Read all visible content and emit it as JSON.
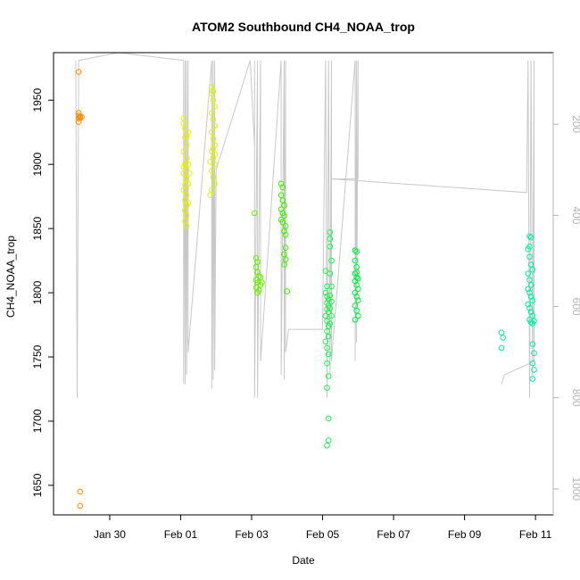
{
  "chart_data": {
    "type": "scatter",
    "title": "ATOM2 Southbound CH4_NOAA_trop",
    "xlabel": "Date",
    "ylabel": "CH4_NOAA_trop",
    "x_axis": {
      "type": "date",
      "range": [
        "2017-01-28T10:00",
        "2017-02-11T12:00"
      ],
      "ticks": [
        "Jan 30",
        "Feb 01",
        "Feb 03",
        "Feb 05",
        "Feb 07",
        "Feb 09",
        "Feb 11"
      ],
      "tick_dates": [
        "2017-01-30",
        "2017-02-01",
        "2017-02-03",
        "2017-02-05",
        "2017-02-07",
        "2017-02-09",
        "2017-02-11"
      ]
    },
    "y_axis": {
      "range": [
        1627,
        1987
      ],
      "ticks": [
        1650,
        1700,
        1750,
        1800,
        1850,
        1900,
        1950
      ]
    },
    "y2_axis": {
      "range": [
        1057,
        43
      ],
      "reversed": true,
      "ticks": [
        200,
        400,
        600,
        800,
        1000
      ],
      "color": "#b3b3b3"
    },
    "grid": false,
    "legend": "none",
    "colors": {
      "background": "#ffffff",
      "axis": "#000000",
      "flight_track": "#c8c8c8",
      "secondary_axis": "#b3b3b3"
    },
    "series": [
      {
        "color": "#FF8C00",
        "points": [
          [
            "2017-01-29T03:00",
            1972
          ],
          [
            "2017-01-29T03:00",
            1940
          ],
          [
            "2017-01-29T03:00",
            1938
          ],
          [
            "2017-01-29T04:00",
            1937
          ],
          [
            "2017-01-29T03:00",
            1936
          ],
          [
            "2017-01-29T04:00",
            1937
          ],
          [
            "2017-01-29T03:00",
            1933
          ],
          [
            "2017-01-29T05:00",
            1937
          ],
          [
            "2017-01-29T04:00",
            1936
          ],
          [
            "2017-01-29T04:00",
            1645
          ],
          [
            "2017-01-29T04:00",
            1634
          ]
        ]
      },
      {
        "color": "#E6F200",
        "points": [
          [
            "2017-02-01T02:00",
            1932
          ],
          [
            "2017-02-01T03:00",
            1928
          ],
          [
            "2017-02-01T03:00",
            1921
          ],
          [
            "2017-02-01T04:00",
            1915
          ],
          [
            "2017-02-01T02:00",
            1910
          ],
          [
            "2017-02-01T04:00",
            1905
          ],
          [
            "2017-02-01T03:00",
            1900
          ],
          [
            "2017-02-01T04:00",
            1896
          ],
          [
            "2017-02-01T02:00",
            1893
          ],
          [
            "2017-02-01T04:00",
            1889
          ],
          [
            "2017-02-01T03:00",
            1884
          ],
          [
            "2017-02-01T02:00",
            1880
          ],
          [
            "2017-02-01T04:00",
            1876
          ],
          [
            "2017-02-01T03:00",
            1872
          ],
          [
            "2017-02-01T04:00",
            1868
          ],
          [
            "2017-02-01T03:00",
            1864
          ],
          [
            "2017-02-01T04:00",
            1860
          ],
          [
            "2017-02-01T03:00",
            1856
          ],
          [
            "2017-02-01T04:00",
            1852
          ],
          [
            "2017-02-01T05:00",
            1900
          ],
          [
            "2017-02-01T05:00",
            1885
          ],
          [
            "2017-02-01T05:00",
            1870
          ],
          [
            "2017-02-01T02:00",
            1936
          ],
          [
            "2017-02-01T04:00",
            1922
          ],
          [
            "2017-02-01T02:00",
            1898
          ],
          [
            "2017-02-01T06:00",
            1893
          ],
          [
            "2017-02-01T05:00",
            1925
          ]
        ]
      },
      {
        "color": "#D8F500",
        "points": [
          [
            "2017-02-01T21:00",
            1960
          ],
          [
            "2017-02-01T22:00",
            1957
          ],
          [
            "2017-02-01T21:00",
            1955
          ],
          [
            "2017-02-01T22:00",
            1950
          ],
          [
            "2017-02-01T23:00",
            1945
          ],
          [
            "2017-02-01T21:00",
            1940
          ],
          [
            "2017-02-01T22:00",
            1935
          ],
          [
            "2017-02-01T23:00",
            1930
          ],
          [
            "2017-02-01T21:00",
            1925
          ],
          [
            "2017-02-01T22:00",
            1920
          ],
          [
            "2017-02-01T23:00",
            1915
          ],
          [
            "2017-02-01T21:00",
            1910
          ],
          [
            "2017-02-01T22:00",
            1905
          ],
          [
            "2017-02-01T23:00",
            1900
          ],
          [
            "2017-02-01T21:00",
            1895
          ],
          [
            "2017-02-01T22:00",
            1890
          ],
          [
            "2017-02-01T23:00",
            1885
          ],
          [
            "2017-02-01T21:00",
            1880
          ],
          [
            "2017-02-01T20:00",
            1876
          ],
          [
            "2017-02-01T23:00",
            1908
          ],
          [
            "2017-02-01T20:00",
            1902
          ],
          [
            "2017-02-01T22:00",
            1912
          ]
        ]
      },
      {
        "color": "#66F000",
        "points": [
          [
            "2017-02-03T02:00",
            1862
          ],
          [
            "2017-02-03T03:00",
            1827
          ],
          [
            "2017-02-03T04:00",
            1824
          ],
          [
            "2017-02-03T03:00",
            1820
          ],
          [
            "2017-02-03T04:00",
            1816
          ],
          [
            "2017-02-03T05:00",
            1813
          ],
          [
            "2017-02-03T03:00",
            1810
          ],
          [
            "2017-02-03T04:00",
            1808
          ],
          [
            "2017-02-03T06:00",
            1806
          ],
          [
            "2017-02-03T03:00",
            1804
          ],
          [
            "2017-02-03T05:00",
            1802
          ],
          [
            "2017-02-03T04:00",
            1800
          ],
          [
            "2017-02-03T06:00",
            1812
          ],
          [
            "2017-02-03T07:00",
            1808
          ]
        ]
      },
      {
        "color": "#40F000",
        "points": [
          [
            "2017-02-03T20:00",
            1885
          ],
          [
            "2017-02-03T21:00",
            1882
          ],
          [
            "2017-02-03T20:00",
            1876
          ],
          [
            "2017-02-03T21:00",
            1872
          ],
          [
            "2017-02-03T22:00",
            1868
          ],
          [
            "2017-02-03T20:00",
            1865
          ],
          [
            "2017-02-03T21:00",
            1862
          ],
          [
            "2017-02-03T22:00",
            1860
          ],
          [
            "2017-02-03T20:00",
            1857
          ],
          [
            "2017-02-03T21:00",
            1855
          ],
          [
            "2017-02-03T23:00",
            1852
          ],
          [
            "2017-02-03T22:00",
            1848
          ],
          [
            "2017-02-03T23:00",
            1835
          ],
          [
            "2017-02-03T22:00",
            1830
          ],
          [
            "2017-02-03T23:00",
            1826
          ],
          [
            "2017-02-03T22:00",
            1822
          ],
          [
            "2017-02-04T00:00",
            1801
          ],
          [
            "2017-02-03T23:00",
            1845
          ]
        ]
      },
      {
        "color": "#20F050",
        "points": [
          [
            "2017-02-05T02:00",
            1817
          ],
          [
            "2017-02-05T03:00",
            1805
          ],
          [
            "2017-02-05T02:00",
            1800
          ],
          [
            "2017-02-05T03:00",
            1797
          ],
          [
            "2017-02-05T04:00",
            1795
          ],
          [
            "2017-02-05T03:00",
            1792
          ],
          [
            "2017-02-05T04:00",
            1790
          ],
          [
            "2017-02-05T03:00",
            1787
          ],
          [
            "2017-02-05T04:00",
            1785
          ],
          [
            "2017-02-05T02:00",
            1782
          ],
          [
            "2017-02-05T03:00",
            1778
          ],
          [
            "2017-02-05T04:00",
            1774
          ],
          [
            "2017-02-05T03:00",
            1770
          ],
          [
            "2017-02-05T04:00",
            1766
          ],
          [
            "2017-02-05T02:00",
            1762
          ],
          [
            "2017-02-05T03:00",
            1757
          ],
          [
            "2017-02-05T04:00",
            1752
          ],
          [
            "2017-02-05T03:00",
            1745
          ],
          [
            "2017-02-05T04:00",
            1735
          ],
          [
            "2017-02-05T03:00",
            1726
          ],
          [
            "2017-02-05T04:00",
            1702
          ],
          [
            "2017-02-05T04:00",
            1685
          ],
          [
            "2017-02-05T03:00",
            1681
          ],
          [
            "2017-02-05T05:00",
            1847
          ],
          [
            "2017-02-05T05:00",
            1842
          ],
          [
            "2017-02-05T05:00",
            1836
          ],
          [
            "2017-02-05T06:00",
            1825
          ],
          [
            "2017-02-05T05:00",
            1815
          ],
          [
            "2017-02-05T06:00",
            1805
          ],
          [
            "2017-02-05T05:00",
            1798
          ],
          [
            "2017-02-05T06:00",
            1793
          ],
          [
            "2017-02-05T05:00",
            1788
          ],
          [
            "2017-02-05T06:00",
            1782
          ],
          [
            "2017-02-05T05:00",
            1776
          ]
        ]
      },
      {
        "color": "#00F040",
        "points": [
          [
            "2017-02-05T22:00",
            1833
          ],
          [
            "2017-02-05T23:00",
            1832
          ],
          [
            "2017-02-05T22:00",
            1825
          ],
          [
            "2017-02-05T23:00",
            1820
          ],
          [
            "2017-02-05T22:00",
            1815
          ],
          [
            "2017-02-05T23:00",
            1812
          ],
          [
            "2017-02-05T22:00",
            1809
          ],
          [
            "2017-02-05T23:00",
            1806
          ],
          [
            "2017-02-06T00:00",
            1803
          ],
          [
            "2017-02-05T22:00",
            1800
          ],
          [
            "2017-02-05T23:00",
            1797
          ],
          [
            "2017-02-06T00:00",
            1794
          ],
          [
            "2017-02-05T22:00",
            1790
          ],
          [
            "2017-02-05T23:00",
            1786
          ],
          [
            "2017-02-06T00:00",
            1782
          ],
          [
            "2017-02-05T22:00",
            1779
          ],
          [
            "2017-02-05T23:00",
            1816
          ],
          [
            "2017-02-06T00:00",
            1811
          ]
        ]
      },
      {
        "color": "#00F0A0",
        "points": [
          [
            "2017-02-10T01:00",
            1769
          ],
          [
            "2017-02-10T02:00",
            1765
          ],
          [
            "2017-02-10T01:00",
            1757
          ],
          [
            "2017-02-10T20:00",
            1844
          ],
          [
            "2017-02-10T21:00",
            1843
          ],
          [
            "2017-02-10T20:00",
            1836
          ],
          [
            "2017-02-10T19:00",
            1834
          ],
          [
            "2017-02-10T20:00",
            1828
          ],
          [
            "2017-02-10T21:00",
            1822
          ],
          [
            "2017-02-10T22:00",
            1818
          ],
          [
            "2017-02-10T19:00",
            1815
          ],
          [
            "2017-02-10T20:00",
            1810
          ],
          [
            "2017-02-10T21:00",
            1806
          ],
          [
            "2017-02-10T19:00",
            1803
          ],
          [
            "2017-02-10T20:00",
            1800
          ],
          [
            "2017-02-10T21:00",
            1797
          ],
          [
            "2017-02-10T22:00",
            1794
          ],
          [
            "2017-02-10T19:00",
            1791
          ],
          [
            "2017-02-10T20:00",
            1788
          ],
          [
            "2017-02-10T21:00",
            1785
          ],
          [
            "2017-02-10T22:00",
            1782
          ],
          [
            "2017-02-10T20:00",
            1779
          ],
          [
            "2017-02-10T21:00",
            1777
          ],
          [
            "2017-02-10T22:00",
            1776
          ],
          [
            "2017-02-10T23:00",
            1778
          ],
          [
            "2017-02-10T22:00",
            1760
          ],
          [
            "2017-02-10T23:00",
            1753
          ],
          [
            "2017-02-10T22:00",
            1745
          ],
          [
            "2017-02-10T23:00",
            1740
          ],
          [
            "2017-02-10T22:00",
            1733
          ]
        ]
      }
    ],
    "flight_track": [
      [
        "2017-01-29T01:00",
        60
      ],
      [
        "2017-01-29T02:00",
        800
      ],
      [
        "2017-01-29T03:00",
        60
      ],
      [
        "2017-01-30T06:00",
        43
      ],
      [
        "2017-02-01T02:00",
        60
      ],
      [
        "2017-02-01T02:00",
        770
      ],
      [
        "2017-02-01T03:00",
        60
      ],
      [
        "2017-02-01T03:00",
        770
      ],
      [
        "2017-02-01T04:00",
        60
      ],
      [
        "2017-02-01T04:00",
        750
      ],
      [
        "2017-02-01T05:00",
        60
      ],
      [
        "2017-02-01T05:00",
        700
      ],
      [
        "2017-02-01T21:00",
        60
      ],
      [
        "2017-02-01T21:00",
        780
      ],
      [
        "2017-02-01T22:00",
        60
      ],
      [
        "2017-02-01T22:00",
        760
      ],
      [
        "2017-02-01T23:00",
        60
      ],
      [
        "2017-02-01T23:00",
        740
      ],
      [
        "2017-02-02T00:00",
        300
      ],
      [
        "2017-02-02T23:00",
        60
      ],
      [
        "2017-02-03T02:00",
        250
      ],
      [
        "2017-02-03T02:00",
        60
      ],
      [
        "2017-02-03T02:00",
        800
      ],
      [
        "2017-02-03T04:00",
        60
      ],
      [
        "2017-02-03T04:00",
        800
      ],
      [
        "2017-02-03T06:00",
        60
      ],
      [
        "2017-02-03T06:00",
        720
      ],
      [
        "2017-02-03T20:00",
        60
      ],
      [
        "2017-02-03T20:00",
        750
      ],
      [
        "2017-02-03T22:00",
        60
      ],
      [
        "2017-02-03T22:00",
        760
      ],
      [
        "2017-02-03T23:00",
        60
      ],
      [
        "2017-02-03T23:00",
        700
      ],
      [
        "2017-02-04T01:00",
        650
      ],
      [
        "2017-02-05T00:00",
        650
      ],
      [
        "2017-02-05T02:00",
        60
      ],
      [
        "2017-02-05T03:00",
        800
      ],
      [
        "2017-02-05T04:00",
        60
      ],
      [
        "2017-02-05T05:00",
        750
      ],
      [
        "2017-02-05T06:00",
        60
      ],
      [
        "2017-02-05T06:00",
        720
      ],
      [
        "2017-02-05T22:00",
        60
      ],
      [
        "2017-02-05T22:00",
        720
      ],
      [
        "2017-02-05T23:00",
        60
      ],
      [
        "2017-02-05T23:00",
        680
      ],
      [
        "2017-02-06T00:00",
        60
      ],
      [
        "2017-02-06T00:00",
        320
      ],
      [
        "2017-02-05T06:00",
        320
      ],
      [
        "2017-02-10T18:00",
        350
      ],
      [
        "2017-02-10T19:00",
        60
      ],
      [
        "2017-02-10T20:00",
        800
      ],
      [
        "2017-02-10T21:00",
        60
      ],
      [
        "2017-02-10T22:00",
        760
      ],
      [
        "2017-02-10T23:00",
        60
      ],
      [
        "2017-02-10T23:00",
        720
      ],
      [
        "2017-02-10T03:00",
        750
      ],
      [
        "2017-02-10T01:00",
        770
      ]
    ]
  }
}
